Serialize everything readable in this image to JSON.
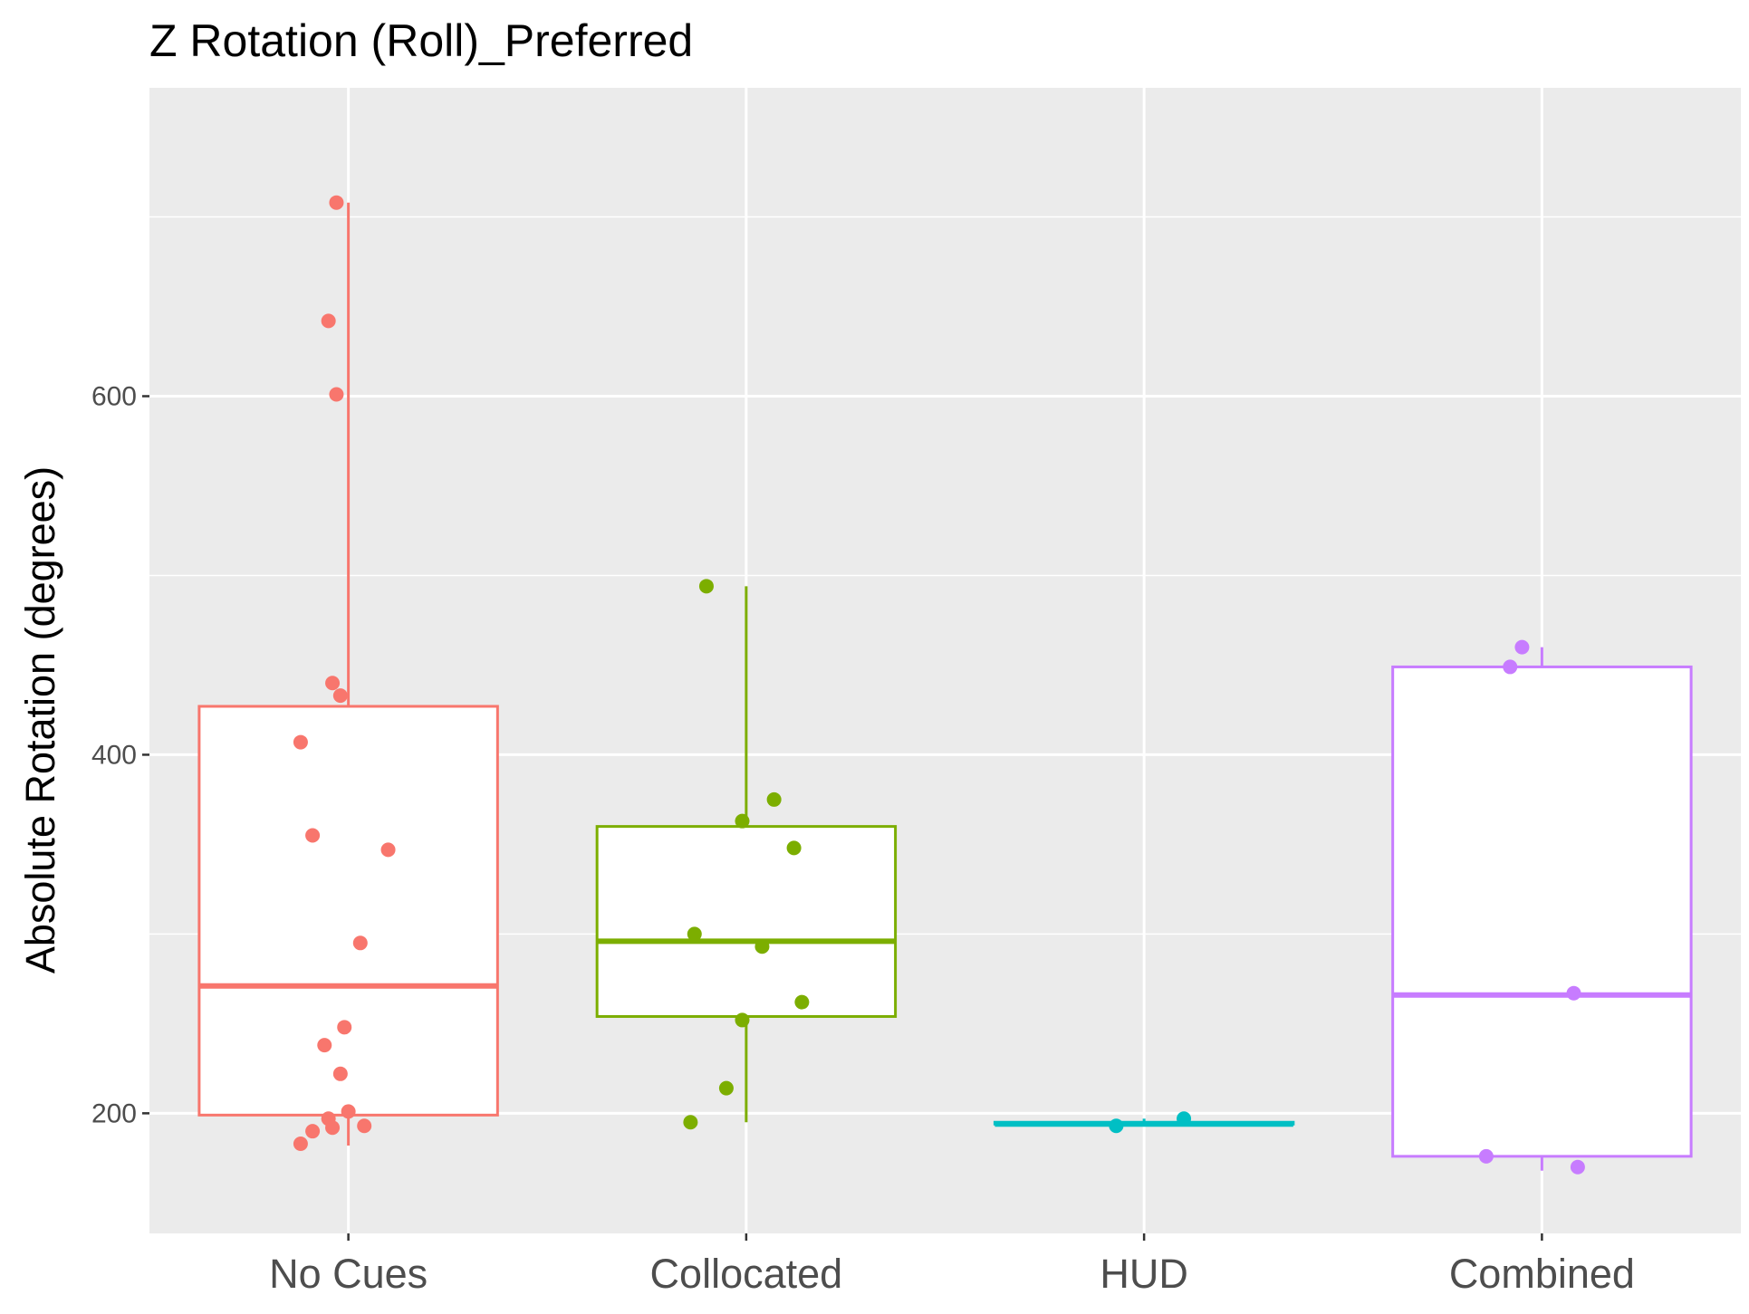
{
  "chart_data": {
    "type": "box",
    "title": "Z Rotation (Roll)_Preferred",
    "xlabel": "",
    "ylabel": "Absolute Rotation (degrees)",
    "ylim": [
      133,
      772
    ],
    "yticks": [
      200,
      400,
      600
    ],
    "grid": true,
    "legend": "none",
    "categories": [
      "No Cues",
      "Collocated",
      "HUD",
      "Combined"
    ],
    "series": [
      {
        "name": "No Cues",
        "color": "#F8766D",
        "box": {
          "whisker_low": 182,
          "q1": 199,
          "median": 271,
          "q3": 427,
          "whisker_high": 708
        },
        "points": [
          {
            "x": -0.03,
            "y": 708
          },
          {
            "x": -0.05,
            "y": 642
          },
          {
            "x": -0.03,
            "y": 601
          },
          {
            "x": -0.04,
            "y": 440
          },
          {
            "x": -0.02,
            "y": 433
          },
          {
            "x": -0.12,
            "y": 407
          },
          {
            "x": -0.09,
            "y": 355
          },
          {
            "x": 0.1,
            "y": 347
          },
          {
            "x": 0.03,
            "y": 295
          },
          {
            "x": -0.01,
            "y": 248
          },
          {
            "x": -0.06,
            "y": 238
          },
          {
            "x": -0.02,
            "y": 222
          },
          {
            "x": -0.0,
            "y": 201
          },
          {
            "x": -0.05,
            "y": 197
          },
          {
            "x": 0.04,
            "y": 193
          },
          {
            "x": -0.04,
            "y": 192
          },
          {
            "x": -0.09,
            "y": 190
          },
          {
            "x": -0.12,
            "y": 183
          }
        ]
      },
      {
        "name": "Collocated",
        "color": "#7CAE00",
        "box": {
          "whisker_low": 195,
          "q1": 254,
          "median": 296,
          "q3": 360,
          "whisker_high": 494
        },
        "points": [
          {
            "x": -0.1,
            "y": 494
          },
          {
            "x": 0.07,
            "y": 375
          },
          {
            "x": -0.01,
            "y": 363
          },
          {
            "x": 0.12,
            "y": 348
          },
          {
            "x": -0.13,
            "y": 300
          },
          {
            "x": 0.04,
            "y": 293
          },
          {
            "x": 0.14,
            "y": 262
          },
          {
            "x": -0.01,
            "y": 252
          },
          {
            "x": -0.05,
            "y": 214
          },
          {
            "x": -0.14,
            "y": 195
          }
        ]
      },
      {
        "name": "HUD",
        "color": "#00BFC4",
        "box": {
          "whisker_low": 194,
          "q1": 194,
          "median": 194,
          "q3": 195,
          "whisker_high": 197
        },
        "points": [
          {
            "x": 0.1,
            "y": 197
          },
          {
            "x": -0.07,
            "y": 193
          }
        ]
      },
      {
        "name": "Combined",
        "color": "#C77CFF",
        "box": {
          "whisker_low": 168,
          "q1": 176,
          "median": 266,
          "q3": 449,
          "whisker_high": 460
        },
        "points": [
          {
            "x": -0.05,
            "y": 460
          },
          {
            "x": -0.08,
            "y": 449
          },
          {
            "x": 0.08,
            "y": 267
          },
          {
            "x": -0.14,
            "y": 176
          },
          {
            "x": 0.09,
            "y": 170
          }
        ]
      }
    ]
  }
}
